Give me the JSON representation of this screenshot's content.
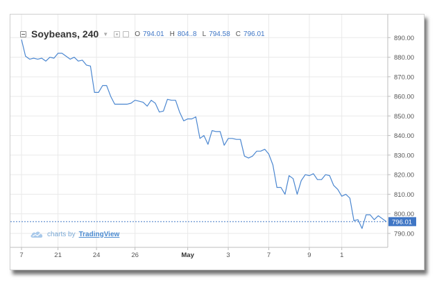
{
  "legend": {
    "symbol": "Soybeans, 240",
    "open_label": "O",
    "open_value": "794.01",
    "high_label": "H",
    "high_value": "804..8",
    "low_label": "L",
    "low_value": "794.58",
    "close_label": "C",
    "close_value": "796.01"
  },
  "branding": {
    "prefix": "charts by",
    "name": "TradingView",
    "icon": "cloud-logo-icon"
  },
  "colors": {
    "line": "#4a86d0",
    "grid": "#e9e9e9",
    "axis_text": "#555555",
    "price_tag_bg": "#3f76c5",
    "price_tag_text": "#ffffff",
    "ohlc_value": "#3f76c5"
  },
  "chart_data": {
    "type": "line",
    "grid": true,
    "y_axis_position": "right",
    "ylim": [
      785,
      894
    ],
    "y_ticks": [
      790,
      800,
      810,
      820,
      830,
      840,
      850,
      860,
      870,
      880,
      890
    ],
    "y_tick_labels": [
      "790.00",
      "800.00",
      "810.00",
      "820.00",
      "830.00",
      "840.00",
      "850.00",
      "860.00",
      "870.00",
      "880.00",
      "890.00"
    ],
    "x_ticks": [
      {
        "label": "7",
        "index": 0,
        "bold": false
      },
      {
        "label": "21",
        "index": 9,
        "bold": false
      },
      {
        "label": "24",
        "index": 18.5,
        "bold": false
      },
      {
        "label": "26",
        "index": 28,
        "bold": false
      },
      {
        "label": "May",
        "index": 41,
        "bold": true
      },
      {
        "label": "3",
        "index": 51,
        "bold": false
      },
      {
        "label": "7",
        "index": 61,
        "bold": false
      },
      {
        "label": "9",
        "index": 71,
        "bold": false
      },
      {
        "label": "1",
        "index": 79,
        "bold": false
      }
    ],
    "last_price": 796.01,
    "last_price_label": "796.01",
    "series": [
      {
        "values": [
          889,
          880.5,
          879,
          879.5,
          879,
          879.5,
          878,
          880,
          879.5,
          882,
          882,
          880.5,
          879,
          880,
          878,
          878.5,
          876,
          875.5,
          862,
          862,
          865.5,
          865.5,
          860,
          856,
          856,
          856,
          856,
          856.5,
          858,
          857.5,
          857,
          855,
          858,
          856.5,
          852,
          852.5,
          858.5,
          858,
          858,
          852,
          847.5,
          848.5,
          848.5,
          849.5,
          838.5,
          840,
          835.5,
          842.5,
          842,
          842,
          835,
          838.5,
          838.5,
          838,
          838,
          829.5,
          828.5,
          829.5,
          832,
          832,
          833,
          830.5,
          825,
          813.5,
          813.5,
          810,
          819.5,
          818,
          810,
          817,
          820,
          819.5,
          820.5,
          817.5,
          817.5,
          820,
          819.5,
          814.5,
          812.5,
          809,
          810,
          808,
          796.5,
          797,
          792.5,
          799.5,
          799.5,
          797,
          799,
          797.5,
          796.01
        ]
      }
    ]
  }
}
